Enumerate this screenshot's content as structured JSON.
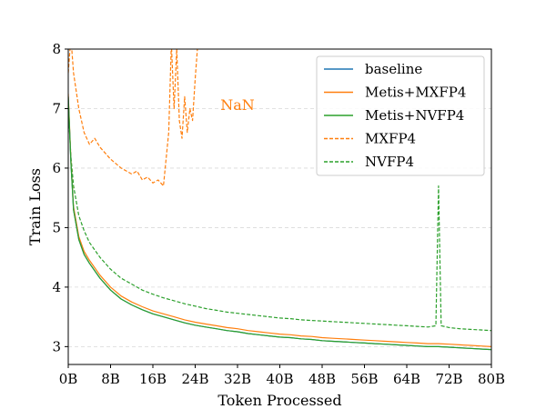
{
  "chart_data": {
    "type": "line",
    "xlabel": "Token Processed",
    "ylabel": "Train Loss",
    "xlim": [
      0,
      80
    ],
    "ylim": [
      2.7,
      8
    ],
    "x_ticks": [
      0,
      8,
      16,
      24,
      32,
      40,
      48,
      56,
      64,
      72,
      80
    ],
    "x_tick_labels": [
      "0B",
      "8B",
      "16B",
      "24B",
      "32B",
      "40B",
      "48B",
      "56B",
      "64B",
      "72B",
      "80B"
    ],
    "y_ticks": [
      3,
      4,
      5,
      6,
      7,
      8
    ],
    "y_tick_labels": [
      "3",
      "4",
      "5",
      "6",
      "7",
      "8"
    ],
    "grid": "horizontal dashed",
    "legend_position": "top-right",
    "annotation": {
      "text": "NaN",
      "x": 32,
      "y": 7.05,
      "color": "#ff7f0e"
    },
    "series": [
      {
        "name": "baseline",
        "color": "#1f77b4",
        "style": "solid",
        "x": [
          0,
          0.5,
          1,
          2,
          3,
          4,
          6,
          8,
          10,
          12,
          14,
          16,
          18,
          20,
          22,
          24,
          26,
          28,
          30,
          32,
          34,
          36,
          38,
          40,
          42,
          44,
          46,
          48,
          50,
          52,
          54,
          56,
          58,
          60,
          62,
          64,
          66,
          68,
          70,
          72,
          74,
          76,
          78,
          80
        ],
        "y": [
          7.2,
          6.1,
          5.3,
          4.8,
          4.55,
          4.4,
          4.15,
          3.95,
          3.8,
          3.7,
          3.62,
          3.55,
          3.5,
          3.45,
          3.4,
          3.36,
          3.33,
          3.3,
          3.27,
          3.25,
          3.22,
          3.2,
          3.18,
          3.16,
          3.15,
          3.13,
          3.12,
          3.1,
          3.09,
          3.08,
          3.07,
          3.06,
          3.05,
          3.04,
          3.03,
          3.02,
          3.01,
          3.0,
          3.0,
          2.99,
          2.98,
          2.97,
          2.96,
          2.95
        ]
      },
      {
        "name": "Metis+MXFP4",
        "color": "#ff7f0e",
        "style": "solid",
        "x": [
          0,
          0.5,
          1,
          2,
          3,
          4,
          6,
          8,
          10,
          12,
          14,
          16,
          18,
          20,
          22,
          24,
          26,
          28,
          30,
          32,
          34,
          36,
          38,
          40,
          42,
          44,
          46,
          48,
          50,
          52,
          54,
          56,
          58,
          60,
          62,
          64,
          66,
          68,
          70,
          72,
          74,
          76,
          78,
          80
        ],
        "y": [
          7.25,
          6.15,
          5.35,
          4.85,
          4.6,
          4.45,
          4.2,
          4.0,
          3.85,
          3.75,
          3.67,
          3.6,
          3.55,
          3.5,
          3.45,
          3.41,
          3.38,
          3.35,
          3.32,
          3.3,
          3.27,
          3.25,
          3.23,
          3.21,
          3.2,
          3.18,
          3.17,
          3.15,
          3.14,
          3.13,
          3.12,
          3.11,
          3.1,
          3.09,
          3.08,
          3.07,
          3.06,
          3.05,
          3.05,
          3.04,
          3.03,
          3.02,
          3.01,
          3.0
        ]
      },
      {
        "name": "Metis+NVFP4",
        "color": "#2ca02c",
        "style": "solid",
        "x": [
          0,
          0.5,
          1,
          2,
          3,
          4,
          6,
          8,
          10,
          12,
          14,
          16,
          18,
          20,
          22,
          24,
          26,
          28,
          30,
          32,
          34,
          36,
          38,
          40,
          42,
          44,
          46,
          48,
          50,
          52,
          54,
          56,
          58,
          60,
          62,
          64,
          66,
          68,
          70,
          72,
          74,
          76,
          78,
          80
        ],
        "y": [
          7.2,
          6.1,
          5.3,
          4.8,
          4.55,
          4.4,
          4.15,
          3.95,
          3.8,
          3.7,
          3.62,
          3.55,
          3.5,
          3.45,
          3.4,
          3.36,
          3.33,
          3.3,
          3.27,
          3.25,
          3.22,
          3.2,
          3.18,
          3.16,
          3.15,
          3.13,
          3.12,
          3.1,
          3.09,
          3.08,
          3.07,
          3.06,
          3.05,
          3.04,
          3.03,
          3.02,
          3.01,
          3.0,
          3.0,
          2.99,
          2.98,
          2.97,
          2.96,
          2.95
        ]
      },
      {
        "name": "MXFP4",
        "color": "#ff7f0e",
        "style": "dashed",
        "x": [
          0,
          0.5,
          1,
          2,
          3,
          4,
          5,
          6,
          8,
          10,
          12,
          13,
          14,
          15,
          16,
          17,
          18,
          19,
          19.5,
          20,
          20.5,
          21,
          21.5,
          22,
          22.5,
          23,
          23.5,
          24,
          24.5
        ],
        "y": [
          7.6,
          8.2,
          7.6,
          7.0,
          6.6,
          6.4,
          6.5,
          6.35,
          6.15,
          6.0,
          5.9,
          5.95,
          5.8,
          5.85,
          5.75,
          5.8,
          5.7,
          6.6,
          8.1,
          7.0,
          8.0,
          6.8,
          6.5,
          7.2,
          6.6,
          7.0,
          6.8,
          7.5,
          8.1
        ]
      },
      {
        "name": "NVFP4",
        "color": "#2ca02c",
        "style": "dashed",
        "x": [
          0,
          0.5,
          1,
          2,
          3,
          4,
          6,
          8,
          10,
          12,
          14,
          16,
          18,
          20,
          22,
          24,
          26,
          28,
          30,
          32,
          34,
          36,
          38,
          40,
          42,
          44,
          46,
          48,
          50,
          52,
          54,
          56,
          58,
          60,
          62,
          64,
          66,
          68,
          69.5,
          70,
          70.5,
          72,
          74,
          76,
          78,
          80
        ],
        "y": [
          7.0,
          6.2,
          5.7,
          5.2,
          4.95,
          4.75,
          4.5,
          4.3,
          4.15,
          4.05,
          3.95,
          3.88,
          3.82,
          3.77,
          3.72,
          3.68,
          3.64,
          3.61,
          3.58,
          3.56,
          3.54,
          3.52,
          3.5,
          3.48,
          3.47,
          3.45,
          3.44,
          3.43,
          3.42,
          3.41,
          3.4,
          3.39,
          3.38,
          3.37,
          3.36,
          3.35,
          3.34,
          3.33,
          3.35,
          5.7,
          3.35,
          3.32,
          3.3,
          3.29,
          3.28,
          3.27
        ]
      }
    ]
  }
}
